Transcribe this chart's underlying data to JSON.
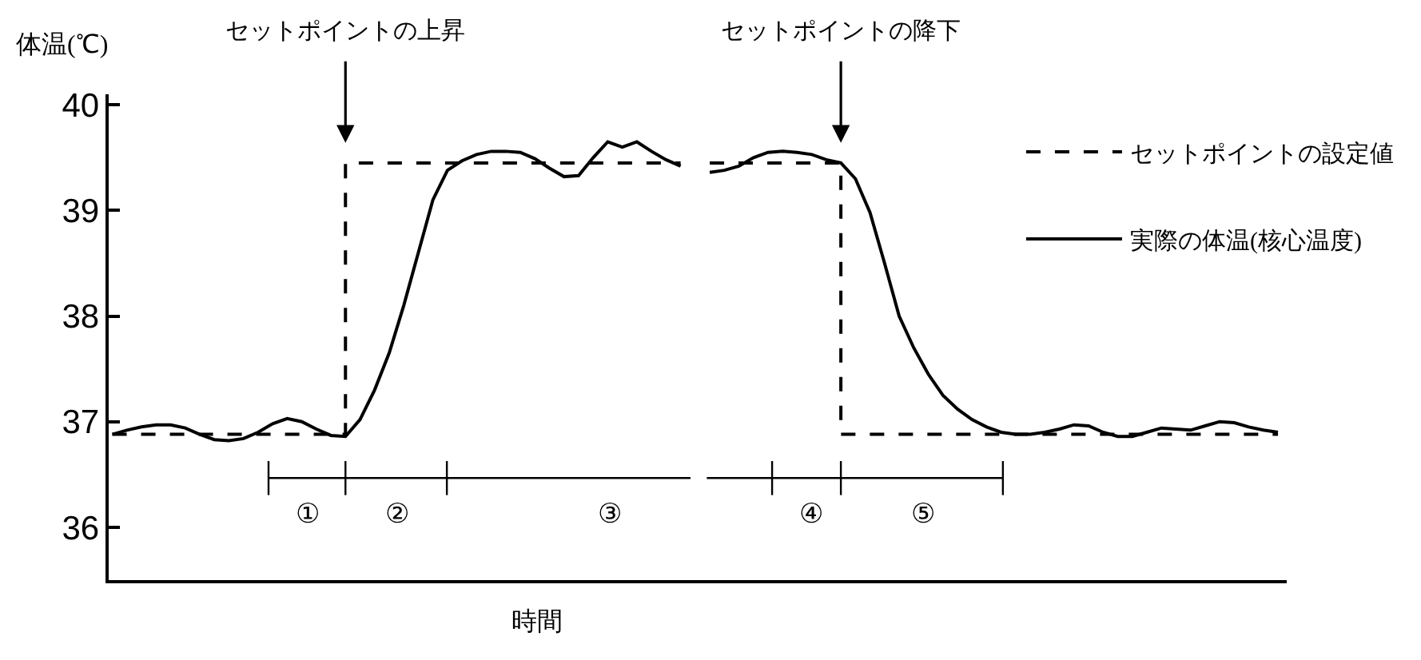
{
  "chart_data": {
    "type": "line",
    "xlabel": "時間",
    "ylabel": "体温(℃)",
    "categories": [
      null,
      null,
      null,
      null,
      null,
      null,
      null,
      null,
      null,
      null,
      null,
      null,
      null,
      null,
      null,
      null,
      null,
      null,
      null,
      null,
      null,
      null,
      null,
      null,
      null,
      null,
      null,
      null,
      null,
      null,
      null,
      null,
      null,
      null,
      null,
      null,
      null,
      null,
      null,
      null,
      null,
      null,
      null,
      null,
      null,
      null,
      null,
      null,
      null,
      null,
      null,
      null,
      null,
      null,
      null,
      null,
      null,
      null,
      null,
      null,
      null,
      null,
      null,
      null,
      null,
      null,
      null,
      null,
      null,
      null,
      null,
      null,
      null,
      null,
      null,
      null,
      null,
      null,
      null,
      null,
      null
    ],
    "series": [
      {
        "name": "セットポイントの設定値",
        "type": "step",
        "line_style": "dashed",
        "color": "#000000",
        "values": [
          36.88,
          36.88,
          36.88,
          36.88,
          36.88,
          36.88,
          36.88,
          36.88,
          36.88,
          36.88,
          36.88,
          36.88,
          36.88,
          36.88,
          36.88,
          36.88,
          39.45,
          39.45,
          39.45,
          39.45,
          39.45,
          39.45,
          39.45,
          39.45,
          39.45,
          39.45,
          39.45,
          39.45,
          39.45,
          39.45,
          39.45,
          39.45,
          39.45,
          39.45,
          39.45,
          39.45,
          39.45,
          39.45,
          39.45,
          39.45,
          null,
          39.45,
          39.45,
          39.45,
          39.45,
          39.45,
          39.45,
          39.45,
          39.45,
          39.45,
          36.88,
          36.88,
          36.88,
          36.88,
          36.88,
          36.88,
          36.88,
          36.88,
          36.88,
          36.88,
          36.88,
          36.88,
          36.88,
          36.88,
          36.88,
          36.88,
          36.88,
          36.88,
          36.88,
          36.88,
          36.88,
          36.88,
          36.88,
          36.88,
          36.88,
          36.88,
          36.88,
          36.88,
          36.88,
          36.88,
          36.88
        ]
      },
      {
        "name": "実際の体温(核心温度)",
        "line_style": "solid",
        "color": "#000000",
        "values": [
          36.88,
          36.92,
          36.95,
          36.97,
          36.97,
          36.94,
          36.88,
          36.83,
          36.82,
          36.84,
          36.9,
          36.98,
          37.03,
          37.0,
          36.93,
          36.87,
          36.86,
          37.02,
          37.3,
          37.65,
          38.1,
          38.6,
          39.1,
          39.38,
          39.47,
          39.53,
          39.56,
          39.56,
          39.55,
          39.49,
          39.4,
          39.32,
          39.33,
          39.5,
          39.65,
          39.6,
          39.65,
          39.56,
          39.48,
          39.42,
          null,
          39.36,
          39.38,
          39.42,
          39.5,
          39.55,
          39.56,
          39.55,
          39.53,
          39.48,
          39.45,
          39.3,
          38.98,
          38.5,
          38.0,
          37.7,
          37.45,
          37.25,
          37.12,
          37.02,
          36.95,
          36.9,
          36.88,
          36.88,
          36.9,
          36.93,
          36.97,
          36.96,
          36.9,
          36.86,
          36.86,
          36.9,
          36.94,
          36.93,
          36.92,
          36.96,
          37.0,
          36.99,
          36.95,
          36.92,
          36.9
        ]
      }
    ],
    "ylim": [
      35.5,
      40.1
    ],
    "yticks": [
      36,
      37,
      38,
      39,
      40
    ],
    "tick_labels": "y",
    "grid": false,
    "marker": "none",
    "legend": "top right",
    "annotations": [
      "セットポイントの上昇",
      "セットポイントの降下",
      "①",
      "②",
      "③",
      "④",
      "⑤"
    ]
  }
}
